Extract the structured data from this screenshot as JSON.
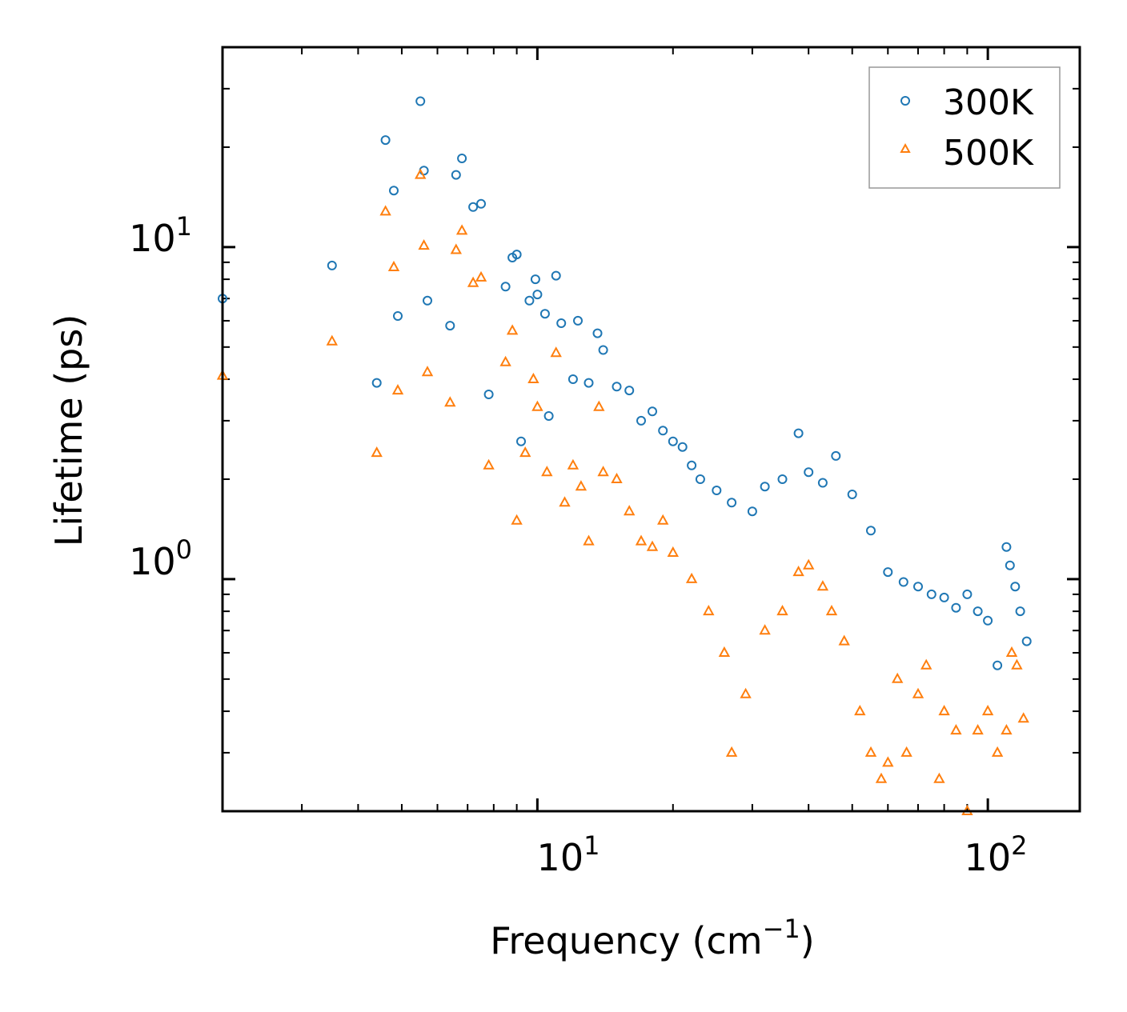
{
  "chart_data": {
    "type": "scatter",
    "xscale": "log",
    "yscale": "log",
    "xlim": [
      2,
      160
    ],
    "ylim": [
      0.2,
      40
    ],
    "xlabel": "Frequency (cm",
    "xlabel_sup": "−1",
    "xlabel_end": ")",
    "ylabel": "Lifetime (ps)",
    "x_major_ticks": [
      {
        "value": 10,
        "base": "10",
        "exp": "1"
      },
      {
        "value": 100,
        "base": "10",
        "exp": "2"
      }
    ],
    "y_major_ticks": [
      {
        "value": 1,
        "base": "10",
        "exp": "0"
      },
      {
        "value": 10,
        "base": "10",
        "exp": "1"
      }
    ],
    "legend_position": "top-right",
    "series": [
      {
        "name": "300K",
        "marker": "circle",
        "color": "#1f77b4",
        "points": [
          [
            2.0,
            7.0
          ],
          [
            3.5,
            8.8
          ],
          [
            4.4,
            3.9
          ],
          [
            4.6,
            21.0
          ],
          [
            4.8,
            14.8
          ],
          [
            4.9,
            6.2
          ],
          [
            5.5,
            27.5
          ],
          [
            5.6,
            17.0
          ],
          [
            5.7,
            6.9
          ],
          [
            6.4,
            5.8
          ],
          [
            6.6,
            16.5
          ],
          [
            6.8,
            18.5
          ],
          [
            7.2,
            13.2
          ],
          [
            7.5,
            13.5
          ],
          [
            7.8,
            3.6
          ],
          [
            8.5,
            7.6
          ],
          [
            8.8,
            9.3
          ],
          [
            9.0,
            9.5
          ],
          [
            9.2,
            2.6
          ],
          [
            9.6,
            6.9
          ],
          [
            9.9,
            8.0
          ],
          [
            10.0,
            7.2
          ],
          [
            10.4,
            6.3
          ],
          [
            10.6,
            3.1
          ],
          [
            11.0,
            8.2
          ],
          [
            11.3,
            5.9
          ],
          [
            12.0,
            4.0
          ],
          [
            12.3,
            6.0
          ],
          [
            13.0,
            3.9
          ],
          [
            13.6,
            5.5
          ],
          [
            14.0,
            4.9
          ],
          [
            15.0,
            3.8
          ],
          [
            16.0,
            3.7
          ],
          [
            17.0,
            3.0
          ],
          [
            18.0,
            3.2
          ],
          [
            19.0,
            2.8
          ],
          [
            20.0,
            2.6
          ],
          [
            21.0,
            2.5
          ],
          [
            22.0,
            2.2
          ],
          [
            23.0,
            2.0
          ],
          [
            25.0,
            1.85
          ],
          [
            27.0,
            1.7
          ],
          [
            30.0,
            1.6
          ],
          [
            32.0,
            1.9
          ],
          [
            35.0,
            2.0
          ],
          [
            38.0,
            2.75
          ],
          [
            40.0,
            2.1
          ],
          [
            43.0,
            1.95
          ],
          [
            46.0,
            2.35
          ],
          [
            50.0,
            1.8
          ],
          [
            55.0,
            1.4
          ],
          [
            60.0,
            1.05
          ],
          [
            65.0,
            0.98
          ],
          [
            70.0,
            0.95
          ],
          [
            75.0,
            0.9
          ],
          [
            80.0,
            0.88
          ],
          [
            85.0,
            0.82
          ],
          [
            90.0,
            0.9
          ],
          [
            95.0,
            0.8
          ],
          [
            100.0,
            0.75
          ],
          [
            105.0,
            0.55
          ],
          [
            110.0,
            1.25
          ],
          [
            112.0,
            1.1
          ],
          [
            115.0,
            0.95
          ],
          [
            118.0,
            0.8
          ],
          [
            122.0,
            0.65
          ]
        ]
      },
      {
        "name": "500K",
        "marker": "triangle",
        "color": "#ff7f0e",
        "points": [
          [
            2.0,
            4.1
          ],
          [
            3.5,
            5.2
          ],
          [
            4.4,
            2.4
          ],
          [
            4.6,
            12.8
          ],
          [
            4.8,
            8.7
          ],
          [
            4.9,
            3.7
          ],
          [
            5.5,
            16.5
          ],
          [
            5.6,
            10.1
          ],
          [
            5.7,
            4.2
          ],
          [
            6.4,
            3.4
          ],
          [
            6.6,
            9.8
          ],
          [
            6.8,
            11.2
          ],
          [
            7.2,
            7.8
          ],
          [
            7.5,
            8.1
          ],
          [
            7.8,
            2.2
          ],
          [
            8.5,
            4.5
          ],
          [
            8.8,
            5.6
          ],
          [
            9.0,
            1.5
          ],
          [
            9.4,
            2.4
          ],
          [
            9.8,
            4.0
          ],
          [
            10.0,
            3.3
          ],
          [
            10.5,
            2.1
          ],
          [
            11.0,
            4.8
          ],
          [
            11.5,
            1.7
          ],
          [
            12.0,
            2.2
          ],
          [
            12.5,
            1.9
          ],
          [
            13.0,
            1.3
          ],
          [
            13.7,
            3.3
          ],
          [
            14.0,
            2.1
          ],
          [
            15.0,
            2.0
          ],
          [
            16.0,
            1.6
          ],
          [
            17.0,
            1.3
          ],
          [
            18.0,
            1.25
          ],
          [
            19.0,
            1.5
          ],
          [
            20.0,
            1.2
          ],
          [
            22.0,
            1.0
          ],
          [
            24.0,
            0.8
          ],
          [
            26.0,
            0.6
          ],
          [
            27.0,
            0.3
          ],
          [
            29.0,
            0.45
          ],
          [
            32.0,
            0.7
          ],
          [
            35.0,
            0.8
          ],
          [
            38.0,
            1.05
          ],
          [
            40.0,
            1.1
          ],
          [
            43.0,
            0.95
          ],
          [
            45.0,
            0.8
          ],
          [
            48.0,
            0.65
          ],
          [
            52.0,
            0.4
          ],
          [
            55.0,
            0.3
          ],
          [
            58.0,
            0.25
          ],
          [
            60.0,
            0.28
          ],
          [
            63.0,
            0.5
          ],
          [
            66.0,
            0.3
          ],
          [
            70.0,
            0.45
          ],
          [
            73.0,
            0.55
          ],
          [
            78.0,
            0.25
          ],
          [
            80.0,
            0.4
          ],
          [
            85.0,
            0.35
          ],
          [
            90.0,
            0.2
          ],
          [
            95.0,
            0.35
          ],
          [
            100.0,
            0.4
          ],
          [
            105.0,
            0.3
          ],
          [
            110.0,
            0.35
          ],
          [
            113.0,
            0.6
          ],
          [
            116.0,
            0.55
          ],
          [
            120.0,
            0.38
          ]
        ]
      }
    ]
  }
}
